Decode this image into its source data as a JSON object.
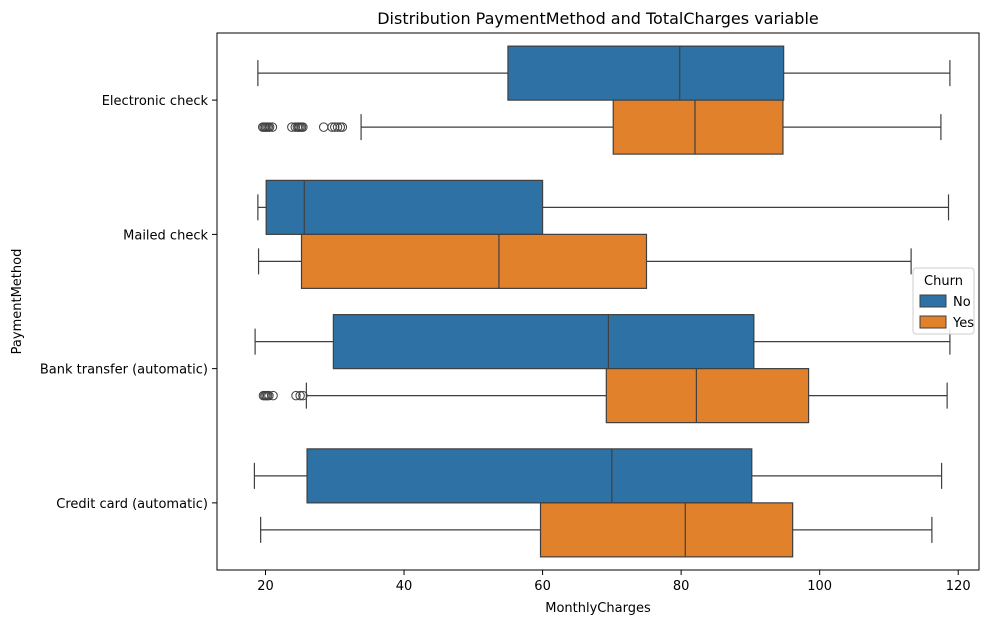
{
  "chart_data": {
    "type": "boxplot",
    "orientation": "horizontal",
    "title": "Distribution PaymentMethod and TotalCharges variable",
    "xlabel": "MonthlyCharges",
    "ylabel": "PaymentMethod",
    "xlim": [
      13,
      123
    ],
    "xticks": [
      20,
      40,
      60,
      80,
      100,
      120
    ],
    "categories": [
      "Electronic check",
      "Mailed check",
      "Bank transfer (automatic)",
      "Credit card (automatic)"
    ],
    "legend": {
      "title": "Churn",
      "placement": "center-right"
    },
    "series": [
      {
        "name": "No",
        "color": "#2e72a5",
        "boxes": [
          {
            "whisker_low": 18.9,
            "q1": 55.0,
            "median": 79.8,
            "q3": 94.8,
            "whisker_high": 118.8,
            "outliers": []
          },
          {
            "whisker_low": 18.9,
            "q1": 20.1,
            "median": 25.6,
            "q3": 60.0,
            "whisker_high": 118.6,
            "outliers": []
          },
          {
            "whisker_low": 18.5,
            "q1": 29.8,
            "median": 69.5,
            "q3": 90.5,
            "whisker_high": 118.8,
            "outliers": []
          },
          {
            "whisker_low": 18.4,
            "q1": 26.0,
            "median": 70.0,
            "q3": 90.2,
            "whisker_high": 117.6,
            "outliers": []
          }
        ]
      },
      {
        "name": "Yes",
        "color": "#e1812c",
        "boxes": [
          {
            "whisker_low": 33.8,
            "q1": 70.2,
            "median": 82.0,
            "q3": 94.7,
            "whisker_high": 117.5,
            "outliers": [
              19.6,
              19.8,
              20.0,
              20.2,
              20.4,
              20.6,
              21.0,
              23.8,
              24.3,
              24.6,
              24.8,
              25.0,
              25.2,
              25.4,
              28.4,
              29.6,
              30.0,
              30.4,
              30.8,
              31.1
            ]
          },
          {
            "whisker_low": 19.0,
            "q1": 25.2,
            "median": 53.7,
            "q3": 75.0,
            "whisker_high": 113.2,
            "outliers": []
          },
          {
            "whisker_low": 25.9,
            "q1": 69.2,
            "median": 82.2,
            "q3": 98.4,
            "whisker_high": 118.4,
            "outliers": [
              19.7,
              19.9,
              20.1,
              20.3,
              20.5,
              21.1,
              24.4,
              25.0,
              25.4
            ]
          },
          {
            "whisker_low": 19.3,
            "q1": 59.7,
            "median": 80.6,
            "q3": 96.1,
            "whisker_high": 116.2,
            "outliers": []
          }
        ]
      }
    ]
  }
}
